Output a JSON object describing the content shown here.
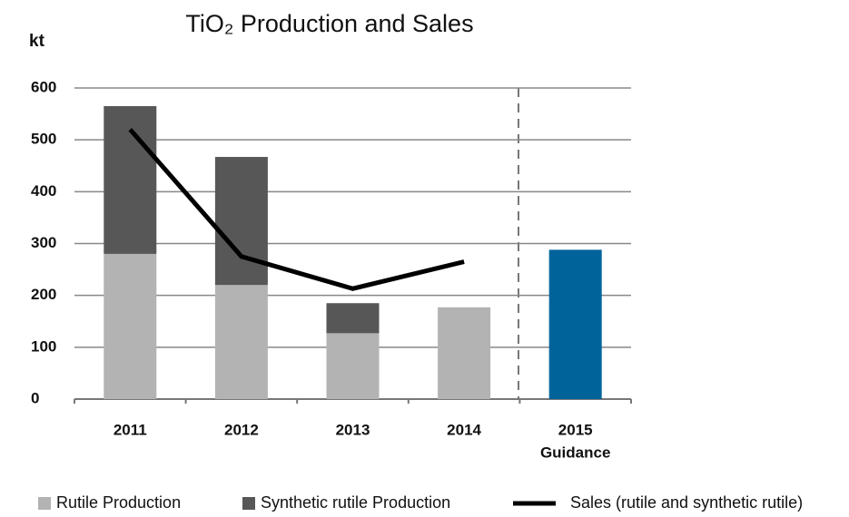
{
  "chart_data": {
    "type": "bar",
    "title": "TiO₂ Production and Sales",
    "y_label": "kt",
    "categories": [
      "2011",
      "2012",
      "2013",
      "2014",
      "2015"
    ],
    "annotations": [
      "Guidance"
    ],
    "series": [
      {
        "name": "Rutile Production",
        "color": "#b3b3b3",
        "values": [
          280,
          220,
          127,
          177,
          null
        ]
      },
      {
        "name": "Synthetic rutile Production",
        "color": "#575757",
        "values": [
          285,
          247,
          58,
          null,
          null
        ]
      },
      {
        "color": "#00649a",
        "values": [
          null,
          null,
          null,
          null,
          288
        ]
      },
      {
        "name": "Sales (rutile and synthetic rutile)",
        "type": "line",
        "color": "#000000",
        "values": [
          520,
          275,
          213,
          265,
          null
        ]
      }
    ],
    "stacked": true,
    "ylim": [
      0,
      600
    ],
    "yticks": [
      0,
      100,
      200,
      300,
      400,
      500,
      600
    ],
    "grid": true,
    "legend": "bottom"
  }
}
